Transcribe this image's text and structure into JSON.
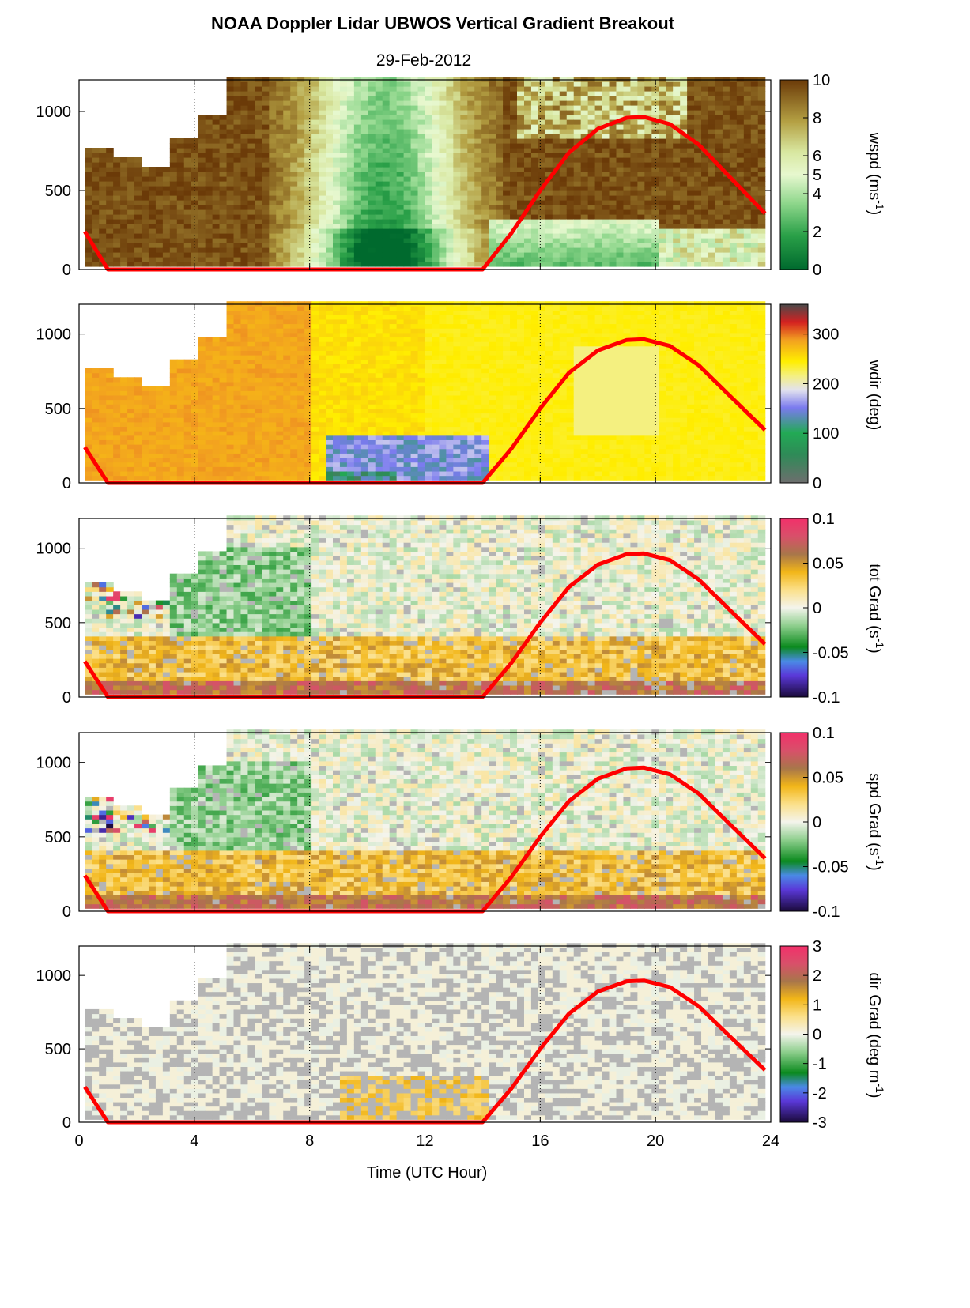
{
  "title": "NOAA Doppler Lidar  UBWOS  Vertical Gradient Breakout",
  "subtitle": "29-Feb-2012",
  "chart_data": {
    "type": "heatmap",
    "xlabel": "Time (UTC Hour)",
    "xlim": [
      0,
      24
    ],
    "xticks": [
      "0",
      "4",
      "8",
      "12",
      "16",
      "20",
      "24"
    ],
    "ylim": [
      0,
      1200
    ],
    "yticks": [
      "0",
      "500",
      "1000"
    ],
    "dotted_gridlines_x": [
      4,
      8,
      12,
      16,
      20
    ],
    "overlay_curve": {
      "color": "#ff0000",
      "x": [
        0.2,
        1.0,
        14.0,
        15.0,
        16.0,
        17.0,
        18.0,
        19.0,
        19.6,
        20.5,
        21.5,
        22.5,
        23.8
      ],
      "y": [
        240,
        0,
        0,
        230,
        500,
        740,
        890,
        960,
        965,
        920,
        790,
        600,
        355
      ]
    },
    "panels": [
      {
        "name": "wspd",
        "cb_label": "wspd (ms",
        "cb_sup": "-1",
        "cb_close": ")",
        "clim": [
          0,
          10
        ],
        "cb_ticks": [
          "0",
          "2",
          "4",
          "5",
          "6",
          "8",
          "10"
        ],
        "cb_tick_values": [
          0,
          2,
          4,
          5,
          6,
          8,
          10
        ]
      },
      {
        "name": "wdir",
        "cb_label": "wdir (deg)",
        "cb_sup": "",
        "cb_close": "",
        "clim": [
          0,
          360
        ],
        "cb_ticks": [
          "0",
          "100",
          "200",
          "300"
        ],
        "cb_tick_values": [
          0,
          100,
          200,
          300
        ]
      },
      {
        "name": "tot-grad",
        "cb_label": "tot Grad (s",
        "cb_sup": "-1",
        "cb_close": ")",
        "clim": [
          -0.1,
          0.1
        ],
        "cb_ticks": [
          "-0.1",
          "-0.05",
          "0",
          "0.05",
          "0.1"
        ],
        "cb_tick_values": [
          -0.1,
          -0.05,
          0,
          0.05,
          0.1
        ]
      },
      {
        "name": "spd-grad",
        "cb_label": "spd Grad (s",
        "cb_sup": "-1",
        "cb_close": ")",
        "clim": [
          -0.1,
          0.1
        ],
        "cb_ticks": [
          "-0.1",
          "-0.05",
          "0",
          "0.05",
          "0.1"
        ],
        "cb_tick_values": [
          -0.1,
          -0.05,
          0,
          0.05,
          0.1
        ]
      },
      {
        "name": "dir-grad",
        "cb_label": "dir Grad (deg m",
        "cb_sup": "-1",
        "cb_close": ")",
        "clim": [
          -3,
          3
        ],
        "cb_ticks": [
          "-3",
          "-2",
          "-1",
          "0",
          "1",
          "2",
          "3"
        ],
        "cb_tick_values": [
          -3,
          -2,
          -1,
          0,
          1,
          2,
          3
        ]
      }
    ]
  }
}
